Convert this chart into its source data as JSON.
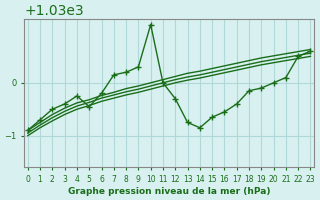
{
  "title": "Graphe pression niveau de la mer (hPa)",
  "bg_color": "#d8f0f0",
  "grid_color": "#b0d8d8",
  "line_color": "#1a6e1a",
  "x_ticks": [
    0,
    1,
    2,
    3,
    4,
    5,
    6,
    7,
    8,
    9,
    10,
    11,
    12,
    13,
    14,
    15,
    16,
    17,
    18,
    19,
    20,
    21,
    22,
    23
  ],
  "y_ticks": [
    1029,
    1030
  ],
  "ylim": [
    1028.4,
    1031.2
  ],
  "xlim": [
    -0.3,
    23.3
  ],
  "main_series": [
    1029.1,
    1029.3,
    1029.5,
    1029.6,
    1029.75,
    1029.55,
    1029.8,
    1030.15,
    1030.2,
    1030.3,
    1031.1,
    1030.0,
    1029.7,
    1029.25,
    1029.15,
    1029.35,
    1029.45,
    1029.6,
    1029.85,
    1029.9,
    1030.0,
    1030.1,
    1030.5,
    1030.6
  ],
  "trend1": [
    1029.1,
    1029.25,
    1029.4,
    1029.52,
    1029.62,
    1029.68,
    1029.76,
    1029.82,
    1029.89,
    1029.94,
    1030.0,
    1030.06,
    1030.12,
    1030.18,
    1030.22,
    1030.27,
    1030.32,
    1030.37,
    1030.42,
    1030.47,
    1030.51,
    1030.55,
    1030.59,
    1030.63
  ],
  "trend2": [
    1029.05,
    1029.2,
    1029.34,
    1029.46,
    1029.56,
    1029.63,
    1029.71,
    1029.77,
    1029.83,
    1029.88,
    1029.94,
    1030.0,
    1030.06,
    1030.11,
    1030.15,
    1030.2,
    1030.25,
    1030.3,
    1030.35,
    1030.4,
    1030.44,
    1030.48,
    1030.52,
    1030.56
  ],
  "trend3": [
    1029.0,
    1029.15,
    1029.28,
    1029.4,
    1029.5,
    1029.57,
    1029.65,
    1029.71,
    1029.77,
    1029.82,
    1029.88,
    1029.94,
    1030.0,
    1030.05,
    1030.09,
    1030.14,
    1030.19,
    1030.24,
    1030.29,
    1030.34,
    1030.38,
    1030.42,
    1030.46,
    1030.5
  ]
}
